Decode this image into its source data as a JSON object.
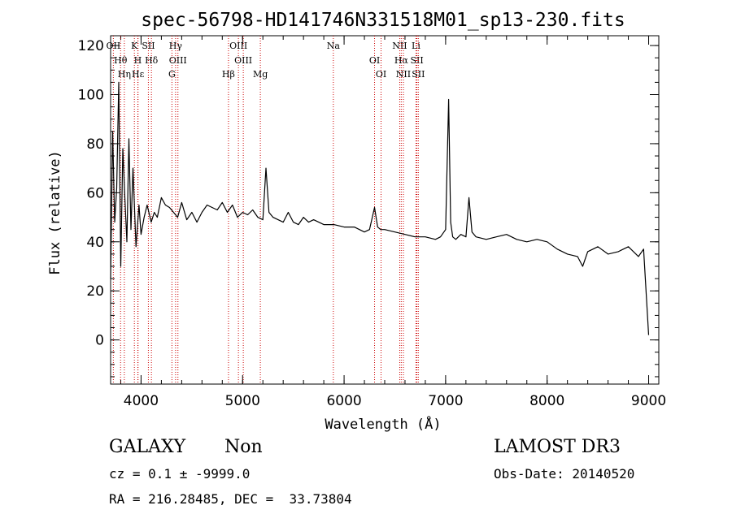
{
  "chart_data": {
    "type": "line",
    "title": "spec-56798-HD141746N331518M01_sp13-230.fits",
    "xlabel": "Wavelength (Å)",
    "ylabel": "Flux (relative)",
    "xlim": [
      3700,
      9100
    ],
    "ylim": [
      -18,
      124
    ],
    "xticks": [
      4000,
      5000,
      6000,
      7000,
      8000,
      9000
    ],
    "yticks": [
      0,
      20,
      40,
      60,
      80,
      100,
      120
    ],
    "line_color": "#000000",
    "marker_color": "#cc0000",
    "grid": false,
    "series": [
      {
        "x": [
          3700,
          3720,
          3740,
          3760,
          3780,
          3800,
          3820,
          3840,
          3860,
          3880,
          3900,
          3920,
          3950,
          3980,
          4000,
          4030,
          4060,
          4100,
          4130,
          4160,
          4200,
          4240,
          4280,
          4320,
          4360,
          4400,
          4450,
          4500,
          4550,
          4600,
          4650,
          4700,
          4750,
          4800,
          4850,
          4900,
          4950,
          5000,
          5050,
          5100,
          5150,
          5200,
          5230,
          5260,
          5300,
          5350,
          5400,
          5450,
          5500,
          5550,
          5600,
          5650,
          5700,
          5800,
          5900,
          6000,
          6100,
          6200,
          6250,
          6300,
          6330,
          6360,
          6400,
          6500,
          6600,
          6700,
          6800,
          6900,
          6950,
          7000,
          7030,
          7050,
          7070,
          7100,
          7150,
          7200,
          7230,
          7260,
          7300,
          7400,
          7500,
          7600,
          7700,
          7800,
          7900,
          8000,
          8100,
          8200,
          8300,
          8350,
          8400,
          8500,
          8600,
          8700,
          8800,
          8900,
          8950,
          9000
        ],
        "y": [
          25,
          85,
          48,
          62,
          105,
          30,
          78,
          58,
          40,
          82,
          45,
          70,
          38,
          55,
          43,
          50,
          55,
          48,
          52,
          50,
          58,
          55,
          54,
          52,
          50,
          56,
          49,
          52,
          48,
          52,
          55,
          54,
          53,
          56,
          52,
          55,
          50,
          52,
          51,
          53,
          50,
          49,
          70,
          52,
          50,
          49,
          48,
          52,
          48,
          47,
          50,
          48,
          49,
          47,
          47,
          46,
          46,
          44,
          45,
          54,
          46,
          45,
          45,
          44,
          43,
          42,
          42,
          41,
          42,
          45,
          98,
          48,
          42,
          41,
          43,
          42,
          58,
          44,
          42,
          41,
          42,
          43,
          41,
          40,
          41,
          40,
          37,
          35,
          34,
          30,
          36,
          38,
          35,
          36,
          38,
          34,
          37,
          2
        ]
      }
    ],
    "lines": [
      {
        "name": "OII",
        "x": 3727
      },
      {
        "name": "Hθ",
        "x": 3798
      },
      {
        "name": "Hη",
        "x": 3835
      },
      {
        "name": "K",
        "x": 3934
      },
      {
        "name": "H",
        "x": 3968
      },
      {
        "name": "Hε",
        "x": 3970
      },
      {
        "name": "SII",
        "x": 4072
      },
      {
        "name": "Hδ",
        "x": 4102
      },
      {
        "name": "G",
        "x": 4304
      },
      {
        "name": "Hγ",
        "x": 4340
      },
      {
        "name": "OIII",
        "x": 4363
      },
      {
        "name": "Hβ",
        "x": 4861
      },
      {
        "name": "OIII",
        "x": 4959
      },
      {
        "name": "OIII",
        "x": 5007
      },
      {
        "name": "Mg",
        "x": 5175
      },
      {
        "name": "Na",
        "x": 5894
      },
      {
        "name": "OI",
        "x": 6300
      },
      {
        "name": "OI",
        "x": 6364
      },
      {
        "name": "NII",
        "x": 6548
      },
      {
        "name": "Hα",
        "x": 6563
      },
      {
        "name": "NII",
        "x": 6584
      },
      {
        "name": "Li",
        "x": 6708
      },
      {
        "name": "SII",
        "x": 6717
      },
      {
        "name": "SII",
        "x": 6731
      }
    ]
  },
  "info": {
    "class_label": "GALAXY",
    "subclass_label": "Non",
    "survey_label": "LAMOST DR3",
    "cz_text": "cz = 0.1 ± -9999.0",
    "obs_date_text": "Obs-Date: 20140520",
    "radec_text": "RA = 216.28485, DEC =  33.73804"
  }
}
